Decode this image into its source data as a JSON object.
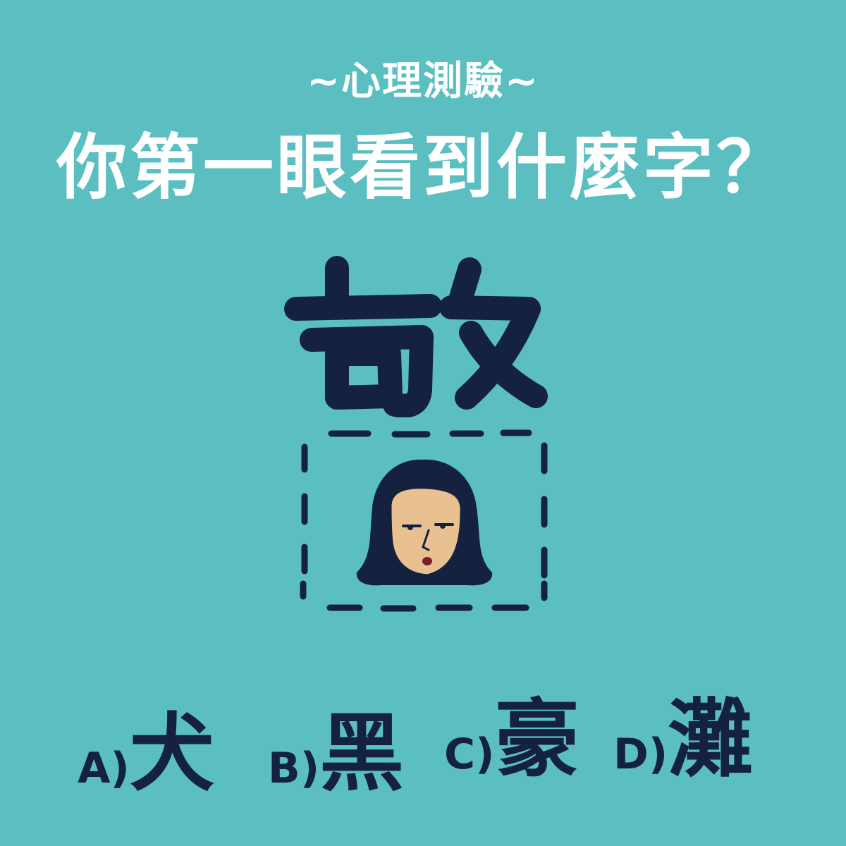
{
  "subtitle": "~心理測驗~",
  "title": "你第一眼看到什麼字？",
  "puzzle": {
    "full_character": "敬",
    "top_part_icons": [
      "radical-gou-icon",
      "radical-pu-icon"
    ],
    "hidden_part_icon": "woman-face-icon"
  },
  "options": [
    {
      "letter": "A)",
      "char": "犬"
    },
    {
      "letter": "B)",
      "char": "黑"
    },
    {
      "letter": "C)",
      "char": "豪"
    },
    {
      "letter": "D)",
      "char": "灘"
    }
  ],
  "colors": {
    "background": "#5bbfc2",
    "title_text": "#ffffff",
    "ink": "#14213f",
    "skin": "#e9c090",
    "lips": "#7a1e2e"
  }
}
